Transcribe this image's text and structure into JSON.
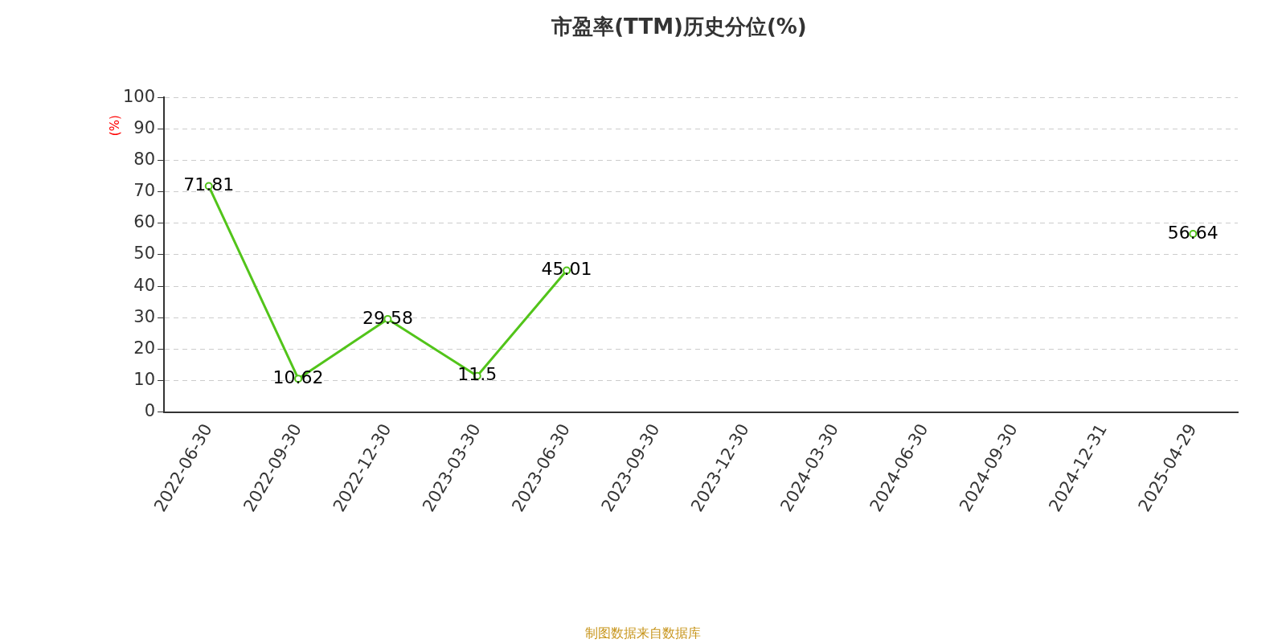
{
  "chart_data": {
    "type": "line",
    "title": "市盈率(TTM)历史分位(%)",
    "ylabel": "(%)",
    "categories": [
      "2022-06-30",
      "2022-09-30",
      "2022-12-30",
      "2023-03-30",
      "2023-06-30",
      "2023-09-30",
      "2023-12-30",
      "2024-03-30",
      "2024-06-30",
      "2024-09-30",
      "2024-12-31",
      "2025-04-29"
    ],
    "series": [
      {
        "color": "#52c41a",
        "values": [
          71.81,
          10.62,
          29.58,
          11.5,
          45.01,
          null,
          null,
          null,
          null,
          null,
          null,
          56.64
        ]
      }
    ],
    "ylim": [
      0,
      100
    ],
    "yticks": [
      0,
      10,
      20,
      30,
      40,
      50,
      60,
      70,
      80,
      90,
      100
    ],
    "grid": "y",
    "legend": false,
    "marker": "circle",
    "line_style": "solid",
    "data_labels": true,
    "annotations": [
      "制图数据来自数据库"
    ]
  }
}
